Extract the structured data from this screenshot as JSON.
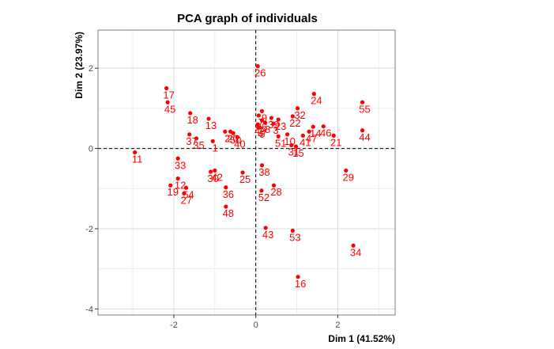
{
  "chart_data": {
    "type": "scatter",
    "title": "PCA graph of individuals",
    "xlabel": "Dim 1 (41.52%)",
    "ylabel": "Dim 2 (23.97%)",
    "xlim": [
      -3.85,
      3.4
    ],
    "ylim": [
      -4.15,
      2.95
    ],
    "xticks": [
      -2,
      0,
      2
    ],
    "yticks": [
      -4,
      -2,
      0,
      2
    ],
    "grid": true,
    "reference_lines": {
      "x": 0,
      "y": 0
    },
    "point_color": "#ff0000",
    "label_color": "#ff0000",
    "points": [
      {
        "label": "1",
        "x": -1.05,
        "y": 0.18
      },
      {
        "label": "2",
        "x": -0.75,
        "y": 0.42
      },
      {
        "label": "3",
        "x": 0.43,
        "y": 0.62
      },
      {
        "label": "4",
        "x": 0.06,
        "y": 0.52
      },
      {
        "label": "5",
        "x": 0.1,
        "y": 0.52
      },
      {
        "label": "6",
        "x": 0.15,
        "y": 0.7
      },
      {
        "label": "7",
        "x": 0.07,
        "y": 0.82
      },
      {
        "label": "8",
        "x": 0.23,
        "y": 0.64
      },
      {
        "label": "9",
        "x": 0.15,
        "y": 0.93
      },
      {
        "label": "10",
        "x": 0.77,
        "y": 0.35
      },
      {
        "label": "11",
        "x": -2.95,
        "y": -0.1
      },
      {
        "label": "12",
        "x": -1.9,
        "y": -0.75
      },
      {
        "label": "13",
        "x": -1.15,
        "y": 0.74
      },
      {
        "label": "14",
        "x": 1.4,
        "y": 0.54
      },
      {
        "label": "15",
        "x": 0.98,
        "y": 0.05
      },
      {
        "label": "16",
        "x": 1.03,
        "y": -3.2
      },
      {
        "label": "17",
        "x": -2.18,
        "y": 1.5
      },
      {
        "label": "18",
        "x": -1.6,
        "y": 0.88
      },
      {
        "label": "19",
        "x": -2.08,
        "y": -0.92
      },
      {
        "label": "20",
        "x": -0.62,
        "y": 0.42
      },
      {
        "label": "21",
        "x": 1.9,
        "y": 0.32
      },
      {
        "label": "22",
        "x": 0.9,
        "y": 0.8
      },
      {
        "label": "23",
        "x": 0.55,
        "y": 0.72
      },
      {
        "label": "24",
        "x": 1.42,
        "y": 1.36
      },
      {
        "label": "25",
        "x": -0.32,
        "y": -0.6
      },
      {
        "label": "26",
        "x": 0.05,
        "y": 2.05
      },
      {
        "label": "27",
        "x": -1.75,
        "y": -1.12
      },
      {
        "label": "28",
        "x": 0.44,
        "y": -0.92
      },
      {
        "label": "29",
        "x": 2.2,
        "y": -0.55
      },
      {
        "label": "30",
        "x": -1.1,
        "y": -0.58
      },
      {
        "label": "31",
        "x": 0.87,
        "y": 0.08
      },
      {
        "label": "32",
        "x": 1.02,
        "y": 1.0
      },
      {
        "label": "33",
        "x": -1.9,
        "y": -0.25
      },
      {
        "label": "34",
        "x": 2.38,
        "y": -2.42
      },
      {
        "label": "35",
        "x": -1.45,
        "y": 0.25
      },
      {
        "label": "36",
        "x": -0.73,
        "y": -0.97
      },
      {
        "label": "37",
        "x": -1.62,
        "y": 0.35
      },
      {
        "label": "38",
        "x": 0.15,
        "y": -0.42
      },
      {
        "label": "39",
        "x": 0.38,
        "y": 0.76
      },
      {
        "label": "40",
        "x": -0.45,
        "y": 0.28
      },
      {
        "label": "41",
        "x": 1.15,
        "y": 0.32
      },
      {
        "label": "42",
        "x": -1.0,
        "y": -0.55
      },
      {
        "label": "43",
        "x": 0.24,
        "y": -1.98
      },
      {
        "label": "44",
        "x": 2.6,
        "y": 0.45
      },
      {
        "label": "45",
        "x": -2.15,
        "y": 1.15
      },
      {
        "label": "46",
        "x": 1.65,
        "y": 0.55
      },
      {
        "label": "47",
        "x": 1.3,
        "y": 0.42
      },
      {
        "label": "48",
        "x": -0.73,
        "y": -1.45
      },
      {
        "label": "49",
        "x": 0.05,
        "y": 0.6
      },
      {
        "label": "50",
        "x": -0.55,
        "y": 0.38
      },
      {
        "label": "51",
        "x": 0.55,
        "y": 0.3
      },
      {
        "label": "52",
        "x": 0.14,
        "y": -1.05
      },
      {
        "label": "53",
        "x": 0.9,
        "y": -2.05
      },
      {
        "label": "54",
        "x": -1.7,
        "y": -0.98
      },
      {
        "label": "55",
        "x": 2.6,
        "y": 1.15
      }
    ]
  }
}
